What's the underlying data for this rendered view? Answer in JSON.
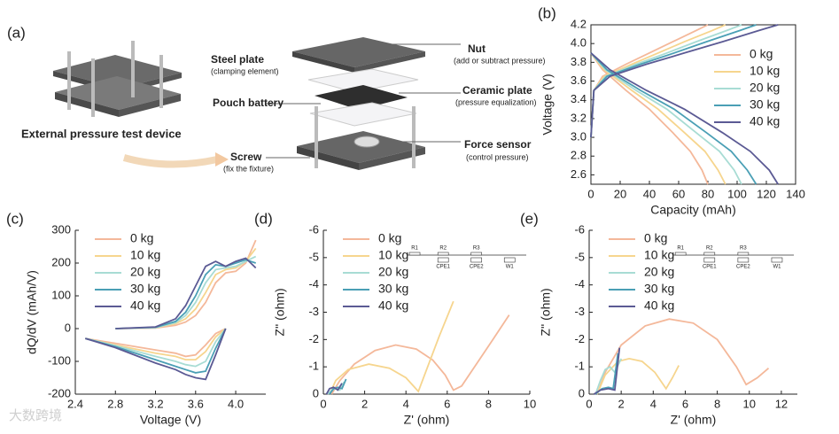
{
  "diagram": {
    "panel": "(a)",
    "device_caption": "External pressure test device",
    "labels": [
      {
        "title": "Steel plate",
        "note": "(clamping element)"
      },
      {
        "title": "Pouch battery"
      },
      {
        "title": "Screw",
        "note": "(fix the fixture)"
      },
      {
        "title": "Nut",
        "note": "(add or subtract pressure)"
      },
      {
        "title": "Ceramic plate",
        "note": "(pressure equalization)"
      },
      {
        "title": "Force sensor",
        "note": "(control pressure)"
      }
    ]
  },
  "watermark": "大数跨境",
  "chart_data": [
    {
      "type": "line",
      "panel": "(b)",
      "xlabel": "Capacity (mAh)",
      "ylabel": "Voltage (V)",
      "xlim": [
        0,
        140
      ],
      "xticks": [
        0,
        20,
        40,
        60,
        80,
        100,
        120,
        140
      ],
      "ylim": [
        2.5,
        4.2
      ],
      "yticks": [
        2.6,
        2.8,
        {
          "value": 3,
          "label": "3.0"
        },
        3.2,
        3.4,
        3.6,
        3.8,
        {
          "value": 4,
          "label": "4.0"
        },
        4.2
      ],
      "spines": "box",
      "legend": "upper right",
      "series": [
        {
          "name": "0 kg",
          "color": "#f4b89a",
          "x": [
            0,
            2,
            8,
            24,
            40,
            56,
            72,
            80,
            null,
            0,
            8,
            24,
            40,
            56,
            68,
            76,
            80
          ],
          "values": [
            3.0,
            3.5,
            3.65,
            3.78,
            3.9,
            4.02,
            4.14,
            4.2,
            null,
            3.9,
            3.72,
            3.5,
            3.3,
            3.05,
            2.85,
            2.65,
            2.5
          ]
        },
        {
          "name": "10 kg",
          "color": "#f6d58e",
          "x": [
            0,
            2,
            9,
            28,
            46,
            64,
            83,
            92,
            null,
            0,
            9,
            28,
            46,
            64,
            78,
            87,
            92
          ],
          "values": [
            3.0,
            3.5,
            3.65,
            3.78,
            3.9,
            4.02,
            4.14,
            4.2,
            null,
            3.9,
            3.72,
            3.5,
            3.3,
            3.05,
            2.85,
            2.65,
            2.5
          ]
        },
        {
          "name": "20 kg",
          "color": "#a8dcd4",
          "x": [
            0,
            2,
            10,
            31,
            52,
            72,
            93,
            103,
            null,
            0,
            10,
            31,
            52,
            72,
            88,
            98,
            103
          ],
          "values": [
            3.0,
            3.5,
            3.65,
            3.78,
            3.9,
            4.02,
            4.14,
            4.2,
            null,
            3.9,
            3.72,
            3.5,
            3.3,
            3.05,
            2.85,
            2.65,
            2.5
          ]
        },
        {
          "name": "30 kg",
          "color": "#4a9fb5",
          "x": [
            0,
            2,
            11,
            34,
            57,
            79,
            102,
            113,
            null,
            0,
            11,
            34,
            57,
            79,
            96,
            107,
            113
          ],
          "values": [
            3.0,
            3.5,
            3.65,
            3.78,
            3.9,
            4.02,
            4.14,
            4.2,
            null,
            3.9,
            3.72,
            3.5,
            3.3,
            3.05,
            2.85,
            2.65,
            2.5
          ]
        },
        {
          "name": "40 kg",
          "color": "#5b5a94",
          "x": [
            0,
            2,
            13,
            38,
            64,
            90,
            115,
            128,
            null,
            0,
            13,
            38,
            64,
            90,
            109,
            122,
            128
          ],
          "values": [
            3.0,
            3.5,
            3.65,
            3.78,
            3.9,
            4.02,
            4.14,
            4.2,
            null,
            3.9,
            3.72,
            3.5,
            3.3,
            3.05,
            2.85,
            2.65,
            2.5
          ]
        }
      ]
    },
    {
      "type": "line",
      "panel": "(c)",
      "xlabel": "Voltage (V)",
      "ylabel": "dQ/dV (mAh/V)",
      "xlim": [
        2.4,
        4.3
      ],
      "xticks": [
        2.4,
        2.8,
        3.2,
        3.6,
        {
          "value": 4,
          "label": "4.0"
        }
      ],
      "ylim": [
        -200,
        300
      ],
      "yticks": [
        -200,
        -100,
        0,
        100,
        200,
        300
      ],
      "spines": "left-bottom",
      "legend": "upper left",
      "series": [
        {
          "name": "0 kg",
          "color": "#f4b89a",
          "x": [
            2.8,
            3.2,
            3.4,
            3.5,
            3.6,
            3.7,
            3.8,
            3.9,
            4.0,
            4.1,
            4.2,
            null,
            2.5,
            2.8,
            3.2,
            3.4,
            3.5,
            3.6,
            3.7,
            3.8,
            3.9
          ],
          "values": [
            0,
            2,
            10,
            20,
            40,
            80,
            140,
            170,
            175,
            200,
            270,
            null,
            -30,
            -45,
            -65,
            -75,
            -85,
            -80,
            -50,
            -15,
            0
          ]
        },
        {
          "name": "10 kg",
          "color": "#f6d58e",
          "x": [
            2.8,
            3.2,
            3.4,
            3.5,
            3.6,
            3.7,
            3.8,
            3.9,
            4.0,
            4.1,
            4.2,
            null,
            2.5,
            2.8,
            3.2,
            3.4,
            3.5,
            3.6,
            3.7,
            3.8,
            3.9
          ],
          "values": [
            0,
            3,
            15,
            30,
            60,
            110,
            165,
            180,
            185,
            205,
            245,
            null,
            -30,
            -50,
            -75,
            -85,
            -95,
            -95,
            -70,
            -25,
            0
          ]
        },
        {
          "name": "20 kg",
          "color": "#a8dcd4",
          "x": [
            2.8,
            3.2,
            3.4,
            3.5,
            3.6,
            3.7,
            3.8,
            3.9,
            4.0,
            4.1,
            4.2,
            null,
            2.5,
            2.8,
            3.2,
            3.4,
            3.5,
            3.6,
            3.7,
            3.8,
            3.9
          ],
          "values": [
            0,
            3,
            18,
            40,
            80,
            140,
            180,
            185,
            190,
            205,
            220,
            null,
            -30,
            -52,
            -85,
            -100,
            -110,
            -115,
            -100,
            -40,
            0
          ]
        },
        {
          "name": "30 kg",
          "color": "#4a9fb5",
          "x": [
            2.8,
            3.2,
            3.4,
            3.5,
            3.6,
            3.7,
            3.8,
            3.9,
            4.0,
            4.1,
            4.2,
            null,
            2.5,
            2.8,
            3.2,
            3.4,
            3.5,
            3.6,
            3.7,
            3.8,
            3.9
          ],
          "values": [
            0,
            4,
            22,
            50,
            100,
            165,
            195,
            190,
            200,
            210,
            200,
            null,
            -30,
            -55,
            -95,
            -115,
            -125,
            -135,
            -130,
            -60,
            0
          ]
        },
        {
          "name": "40 kg",
          "color": "#5b5a94",
          "x": [
            2.8,
            3.2,
            3.4,
            3.5,
            3.6,
            3.7,
            3.8,
            3.9,
            4.0,
            4.1,
            4.2,
            null,
            2.5,
            2.8,
            3.2,
            3.4,
            3.5,
            3.6,
            3.7,
            3.8,
            3.9
          ],
          "values": [
            0,
            5,
            30,
            70,
            130,
            190,
            205,
            190,
            205,
            215,
            185,
            null,
            -30,
            -58,
            -105,
            -125,
            -140,
            -150,
            -155,
            -80,
            0
          ]
        }
      ]
    },
    {
      "type": "line",
      "panel": "(d)",
      "xlabel": "Z' (ohm)",
      "ylabel": "Z'' (ohm)",
      "xlim": [
        0,
        10
      ],
      "xticks": [
        0,
        2,
        4,
        6,
        8,
        10
      ],
      "ylim": [
        0,
        -6
      ],
      "yticks": [
        0,
        -1,
        -2,
        -3,
        -4,
        -5,
        -6
      ],
      "spines": "left-bottom",
      "legend": "upper left",
      "circuit": [
        "R1",
        "R2",
        "CPE1",
        "R3",
        "CPE2",
        "W1"
      ],
      "series": [
        {
          "name": "0 kg",
          "color": "#f4b89a",
          "x": [
            0.4,
            0.8,
            1.5,
            2.5,
            3.5,
            4.5,
            5.3,
            5.9,
            6.3,
            6.7,
            7.5,
            8.3,
            9.0
          ],
          "values": [
            0,
            -0.5,
            -1.1,
            -1.6,
            -1.8,
            -1.65,
            -1.25,
            -0.7,
            -0.15,
            -0.3,
            -1.2,
            -2.1,
            -2.9
          ]
        },
        {
          "name": "10 kg",
          "color": "#f6d58e",
          "x": [
            0.3,
            0.6,
            1.2,
            2.2,
            3.2,
            4.0,
            4.6,
            5.0,
            5.6,
            6.3
          ],
          "values": [
            0,
            -0.5,
            -0.9,
            -1.1,
            -0.95,
            -0.6,
            -0.1,
            -0.9,
            -2.1,
            -3.4
          ]
        },
        {
          "name": "20 kg",
          "color": "#a8dcd4",
          "x": [
            0.2,
            0.4,
            0.6,
            0.8,
            1.0
          ],
          "values": [
            0,
            -0.15,
            -0.2,
            -0.15,
            -0.45
          ]
        },
        {
          "name": "30 kg",
          "color": "#4a9fb5",
          "x": [
            0.3,
            0.5,
            0.7,
            0.9,
            1.1
          ],
          "values": [
            0,
            -0.2,
            -0.25,
            -0.2,
            -0.55
          ]
        },
        {
          "name": "40 kg",
          "color": "#5b5a94",
          "x": [
            0.15,
            0.3,
            0.5,
            0.7,
            0.9
          ],
          "values": [
            0,
            -0.2,
            -0.25,
            -0.15,
            -0.4
          ]
        }
      ]
    },
    {
      "type": "line",
      "panel": "(e)",
      "xlabel": "Z' (ohm)",
      "ylabel": "Z'' (ohm)",
      "xlim": [
        0,
        13
      ],
      "xticks": [
        0,
        2,
        4,
        6,
        8,
        10,
        12
      ],
      "ylim": [
        0,
        -6
      ],
      "yticks": [
        0,
        -1,
        -2,
        -3,
        -4,
        -5,
        -6
      ],
      "spines": "left-bottom",
      "legend": "upper left",
      "circuit": [
        "R1",
        "R2",
        "CPE1",
        "R3",
        "CPE2",
        "W1"
      ],
      "series": [
        {
          "name": "0 kg",
          "color": "#f4b89a",
          "x": [
            0.5,
            1.0,
            2.0,
            3.5,
            5.0,
            6.5,
            8.0,
            9.2,
            9.8,
            10.5,
            11.2
          ],
          "values": [
            0,
            -0.8,
            -1.8,
            -2.5,
            -2.75,
            -2.6,
            -2.0,
            -1.0,
            -0.35,
            -0.6,
            -0.95
          ]
        },
        {
          "name": "10 kg",
          "color": "#f6d58e",
          "x": [
            0.5,
            1.0,
            1.8,
            2.5,
            3.3,
            4.1,
            4.8,
            5.2,
            5.6
          ],
          "values": [
            0,
            -0.7,
            -1.2,
            -1.3,
            -1.2,
            -0.8,
            -0.2,
            -0.6,
            -1.05
          ]
        },
        {
          "name": "20 kg",
          "color": "#a8dcd4",
          "x": [
            0.4,
            0.7,
            1.0,
            1.3,
            1.6,
            2.0
          ],
          "values": [
            0,
            -0.5,
            -0.9,
            -1.0,
            -0.8,
            -1.3
          ]
        },
        {
          "name": "30 kg",
          "color": "#4a9fb5",
          "x": [
            0.4,
            0.8,
            1.2,
            1.5,
            1.8
          ],
          "values": [
            0,
            -0.2,
            -0.25,
            -0.2,
            -1.5
          ]
        },
        {
          "name": "40 kg",
          "color": "#5b5a94",
          "x": [
            0.3,
            0.7,
            1.2,
            1.6,
            1.9
          ],
          "values": [
            0,
            -0.15,
            -0.2,
            -0.15,
            -1.7
          ]
        }
      ]
    }
  ]
}
